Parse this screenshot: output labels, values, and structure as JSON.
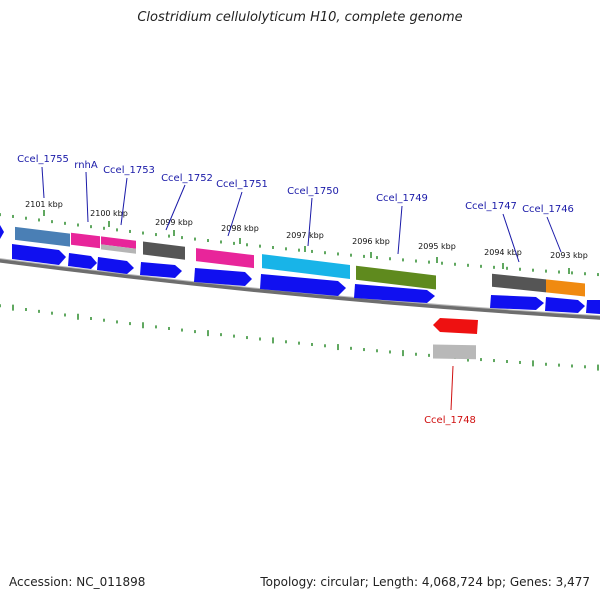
{
  "title": "Clostridium cellulolyticum H10, complete genome",
  "footer": {
    "accession": "Accession: NC_011898",
    "summary": "Topology: circular; Length: 4,068,724 bp; Genes: 3,477"
  },
  "colors": {
    "cds_arrow": "#1010f0",
    "label": "#1a1aa8",
    "label_reverse": "#d01010",
    "tick": "#2a8a2a",
    "backbone": "#808080"
  },
  "ticks": [
    "2101 kbp",
    "2100 kbp",
    "2099 kbp",
    "2098 kbp",
    "2097 kbp",
    "2096 kbp",
    "2095 kbp",
    "2094 kbp",
    "2093 kbp"
  ],
  "genes": [
    {
      "label": "Ccel_1755",
      "color": "#4a7fb5"
    },
    {
      "label": "rnhA",
      "color": "#e8259a"
    },
    {
      "label": "Ccel_1753",
      "color": "#e8259a"
    },
    {
      "label": "Ccel_1752",
      "color": "#555555"
    },
    {
      "label": "Ccel_1751",
      "color": "#e8259a"
    },
    {
      "label": "Ccel_1750",
      "color": "#18b4e8"
    },
    {
      "label": "Ccel_1749",
      "color": "#5f8a1e"
    },
    {
      "label": "Ccel_1748",
      "color": "#ee1111",
      "strand": "reverse"
    },
    {
      "label": "Ccel_1747",
      "color": "#555555"
    },
    {
      "label": "Ccel_1746",
      "color": "#f08a10"
    }
  ]
}
